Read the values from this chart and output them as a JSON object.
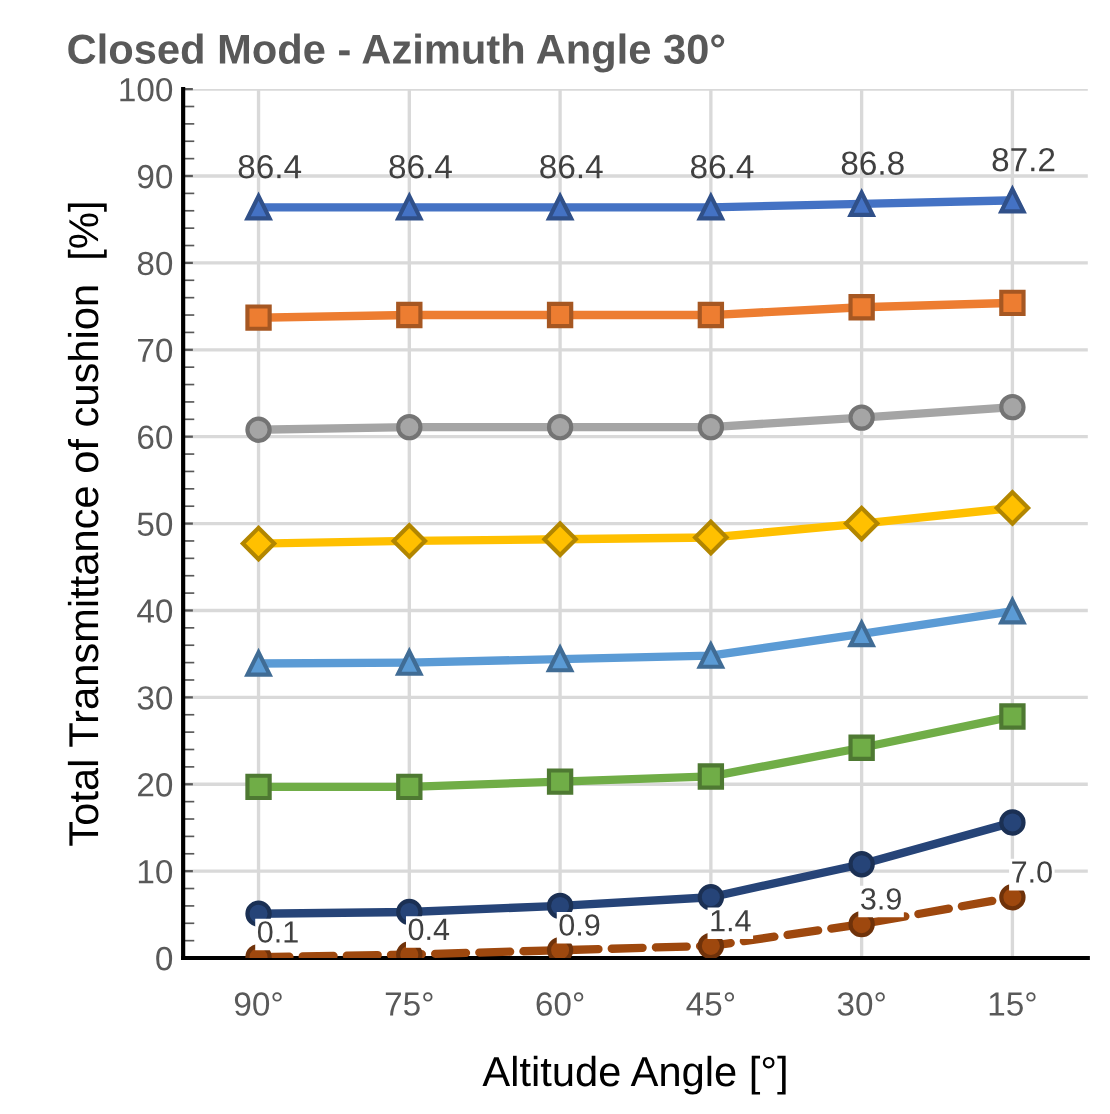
{
  "chart_data": {
    "type": "line",
    "title": "Closed Mode - Azimuth Angle 30°",
    "xlabel": "Altitude Angle [°]",
    "ylabel": "Total Transmittance of cushion  [%]",
    "categories": [
      "90°",
      "75°",
      "60°",
      "45°",
      "30°",
      "15°"
    ],
    "ylim": [
      0,
      100
    ],
    "yticks": [
      0,
      10,
      20,
      30,
      40,
      50,
      60,
      70,
      80,
      90,
      100
    ],
    "grid": true,
    "series": [
      {
        "color": "#4472c4",
        "marker": "triangle",
        "line_style": "solid",
        "values": [
          86.4,
          86.4,
          86.4,
          86.4,
          86.8,
          87.2
        ],
        "value_labels": [
          "86.4",
          "86.4",
          "86.4",
          "86.4",
          "86.8",
          "87.2"
        ]
      },
      {
        "color": "#ed7d31",
        "marker": "square",
        "line_style": "solid",
        "values": [
          73.7,
          74.0,
          74.0,
          74.0,
          74.9,
          75.4
        ]
      },
      {
        "color": "#a5a5a5",
        "marker": "circle",
        "line_style": "solid",
        "values": [
          60.8,
          61.1,
          61.1,
          61.1,
          62.2,
          63.4
        ]
      },
      {
        "color": "#ffc000",
        "marker": "diamond",
        "line_style": "solid",
        "values": [
          47.7,
          48.0,
          48.2,
          48.4,
          50.0,
          51.8
        ]
      },
      {
        "color": "#5b9bd5",
        "marker": "triangle",
        "line_style": "solid",
        "values": [
          33.9,
          34.0,
          34.4,
          34.8,
          37.3,
          39.9
        ]
      },
      {
        "color": "#70ad47",
        "marker": "square",
        "line_style": "solid",
        "values": [
          19.7,
          19.7,
          20.3,
          20.9,
          24.2,
          27.8
        ]
      },
      {
        "color": "#264478",
        "marker": "circle",
        "line_style": "solid",
        "values": [
          5.1,
          5.3,
          6.0,
          7.0,
          10.8,
          15.6
        ]
      },
      {
        "color": "#9e480e",
        "marker": "circle",
        "line_style": "dashed",
        "values": [
          0.1,
          0.4,
          0.9,
          1.4,
          3.9,
          7.0
        ],
        "value_labels": [
          "0.1",
          "0.4",
          "0.9",
          "1.4",
          "3.9",
          "7.0"
        ]
      }
    ]
  }
}
